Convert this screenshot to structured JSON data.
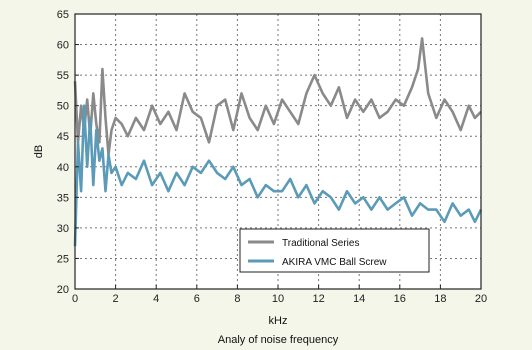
{
  "chart_data": {
    "type": "line",
    "title": "",
    "caption": "Analy of noise frequency",
    "xlabel": "kHz",
    "ylabel": "dB",
    "xlim": [
      0,
      20
    ],
    "ylim": [
      20,
      65
    ],
    "x_ticks": [
      0,
      2,
      4,
      6,
      8,
      10,
      12,
      14,
      16,
      18,
      20
    ],
    "y_ticks": [
      20,
      25,
      30,
      35,
      40,
      45,
      50,
      55,
      60,
      65
    ],
    "grid": true,
    "legend_position": "bottom-right",
    "series": [
      {
        "name": "Traditional Series",
        "color": "#8a8a8a",
        "x": [
          0.0,
          0.15,
          0.3,
          0.45,
          0.6,
          0.75,
          0.9,
          1.05,
          1.2,
          1.35,
          1.5,
          1.65,
          1.8,
          2.0,
          2.3,
          2.6,
          3.0,
          3.4,
          3.8,
          4.2,
          4.6,
          5.0,
          5.4,
          5.8,
          6.2,
          6.6,
          7.0,
          7.4,
          7.8,
          8.2,
          8.6,
          9.0,
          9.4,
          9.8,
          10.2,
          10.6,
          11.0,
          11.4,
          11.8,
          12.2,
          12.6,
          13.0,
          13.4,
          13.8,
          14.2,
          14.6,
          15.0,
          15.4,
          15.8,
          16.2,
          16.6,
          16.9,
          17.1,
          17.4,
          17.8,
          18.2,
          18.6,
          19.0,
          19.4,
          19.7,
          20.0
        ],
        "values": [
          54,
          44,
          50,
          46,
          51,
          45,
          52,
          47,
          44,
          56,
          48,
          42,
          46,
          48,
          47,
          45,
          48,
          46,
          50,
          47,
          49,
          46,
          52,
          49,
          48,
          44,
          50,
          51,
          46,
          52,
          48,
          46,
          50,
          47,
          51,
          49,
          47,
          52,
          55,
          52,
          50,
          53,
          48,
          51,
          49,
          51,
          48,
          49,
          51,
          50,
          53,
          56,
          61,
          52,
          48,
          51,
          49,
          46,
          50,
          48,
          49
        ]
      },
      {
        "name": "AKIRA VMC Ball Screw",
        "color": "#5c9bb8",
        "x": [
          0.0,
          0.15,
          0.3,
          0.45,
          0.6,
          0.75,
          0.9,
          1.05,
          1.2,
          1.35,
          1.5,
          1.65,
          1.8,
          2.0,
          2.3,
          2.6,
          3.0,
          3.4,
          3.8,
          4.2,
          4.6,
          5.0,
          5.4,
          5.8,
          6.2,
          6.6,
          7.0,
          7.4,
          7.8,
          8.2,
          8.6,
          9.0,
          9.4,
          9.8,
          10.2,
          10.6,
          11.0,
          11.4,
          11.8,
          12.2,
          12.6,
          13.0,
          13.4,
          13.8,
          14.2,
          14.6,
          15.0,
          15.4,
          15.8,
          16.2,
          16.6,
          17.0,
          17.4,
          17.8,
          18.2,
          18.6,
          19.0,
          19.4,
          19.7,
          20.0
        ],
        "values": [
          27,
          44,
          36,
          50,
          40,
          48,
          37,
          46,
          41,
          43,
          36,
          42,
          39,
          40,
          37,
          39,
          38,
          41,
          37,
          39,
          36,
          39,
          37,
          40,
          39,
          41,
          39,
          38,
          40,
          37,
          38,
          35,
          37,
          36,
          36,
          38,
          35,
          37,
          34,
          36,
          35,
          33,
          36,
          34,
          35,
          33,
          35,
          33,
          34,
          35,
          32,
          34,
          33,
          33,
          31,
          34,
          32,
          33,
          31,
          33
        ]
      }
    ]
  }
}
